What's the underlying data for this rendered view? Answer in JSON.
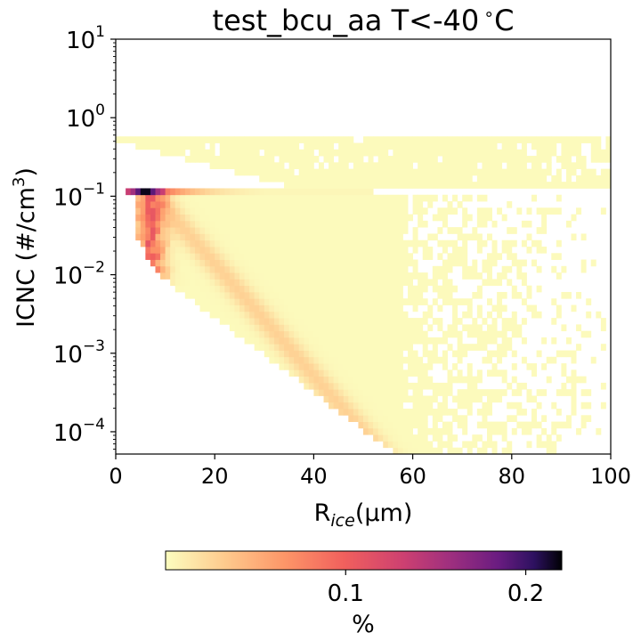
{
  "chart_data": {
    "type": "heatmap",
    "title": "test_bcu_aa T<-40$^\\circ$C",
    "title_main": "test_bcu_aa T<-40",
    "title_degree": "∘",
    "title_unit": "C",
    "xlabel_base": "R",
    "xlabel_sub": "ice",
    "xlabel_rest": "(μm)",
    "ylabel_main": "ICNC (#/cm",
    "ylabel_sup": "3",
    "ylabel_end": ")",
    "x_ticks": [
      "0",
      "20",
      "40",
      "60",
      "80",
      "100"
    ],
    "x_tick_values": [
      0,
      20,
      40,
      60,
      80,
      100
    ],
    "y_ticks": [
      {
        "value": 10.0,
        "base": "10",
        "exp": "1"
      },
      {
        "value": 1.0,
        "base": "10",
        "exp": "0"
      },
      {
        "value": 0.1,
        "base": "10",
        "exp": "−1"
      },
      {
        "value": 0.01,
        "base": "10",
        "exp": "−2"
      },
      {
        "value": 0.001,
        "base": "10",
        "exp": "−3"
      },
      {
        "value": 0.0001,
        "base": "10",
        "exp": "−4"
      }
    ],
    "xlim": [
      0,
      100
    ],
    "ylim": [
      5.2e-05,
      10
    ],
    "yscale": "log",
    "colorbar": {
      "label": "%",
      "min": 0.0,
      "max": 0.22,
      "ticks": [
        "0.1",
        "0.2"
      ],
      "tick_values": [
        0.1,
        0.2
      ],
      "colormap": "magma_r"
    }
  }
}
